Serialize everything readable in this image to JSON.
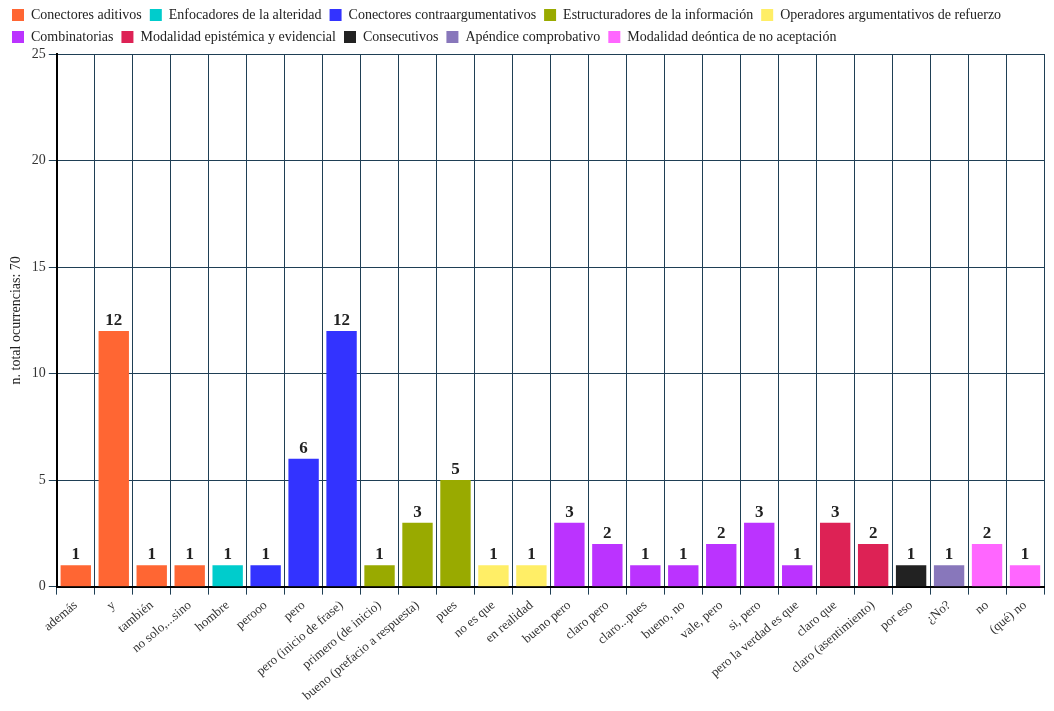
{
  "chart_data": {
    "type": "bar",
    "ylabel": "n. total ocurrencias: 70",
    "categories": [
      "además",
      "y",
      "también",
      "no solo,...sino",
      "hombre",
      "perooo",
      "pero",
      "pero (inicio de frase)",
      "primero (de inicio)",
      "bueno (prefacio a respuesta)",
      "pues",
      "no es que",
      "en realidad",
      "bueno pero",
      "claro pero",
      "claro...pues",
      "bueno, no",
      "vale, pero",
      "si, pero",
      "pero la verdad es que",
      "claro que",
      "claro (asentimiento)",
      "por eso",
      "¿No?",
      "no",
      "(qué) no"
    ],
    "series": [
      {
        "name": "Conectores aditivos",
        "color": "#ff6633",
        "values": [
          1,
          12,
          1,
          1,
          null,
          null,
          null,
          null,
          null,
          null,
          null,
          null,
          null,
          null,
          null,
          null,
          null,
          null,
          null,
          null,
          null,
          null,
          null,
          null,
          null,
          null
        ]
      },
      {
        "name": "Enfocadores de la alteridad",
        "color": "#00cccc",
        "values": [
          null,
          null,
          null,
          null,
          1,
          null,
          null,
          null,
          null,
          null,
          null,
          null,
          null,
          null,
          null,
          null,
          null,
          null,
          null,
          null,
          null,
          null,
          null,
          null,
          null,
          null
        ]
      },
      {
        "name": "Conectores contraargumentativos",
        "color": "#3333ff",
        "values": [
          null,
          null,
          null,
          null,
          null,
          1,
          6,
          12,
          null,
          null,
          null,
          null,
          null,
          null,
          null,
          null,
          null,
          null,
          null,
          null,
          null,
          null,
          null,
          null,
          null,
          null
        ]
      },
      {
        "name": "Estructuradores de la información",
        "color": "#99aa00",
        "values": [
          null,
          null,
          null,
          null,
          null,
          null,
          null,
          null,
          1,
          3,
          5,
          null,
          null,
          null,
          null,
          null,
          null,
          null,
          null,
          null,
          null,
          null,
          null,
          null,
          null,
          null
        ]
      },
      {
        "name": "Operadores argumentativos de refuerzo",
        "color": "#ffee66",
        "values": [
          null,
          null,
          null,
          null,
          null,
          null,
          null,
          null,
          null,
          null,
          null,
          1,
          1,
          null,
          null,
          null,
          null,
          null,
          null,
          null,
          null,
          null,
          null,
          null,
          null,
          null
        ]
      },
      {
        "name": "Combinatorias",
        "color": "#bb33ff",
        "values": [
          null,
          null,
          null,
          null,
          null,
          null,
          null,
          null,
          null,
          null,
          null,
          null,
          null,
          3,
          2,
          1,
          1,
          2,
          3,
          1,
          null,
          null,
          null,
          null,
          null,
          null
        ]
      },
      {
        "name": "Modalidad epistémica y evidencial",
        "color": "#dd2255",
        "values": [
          null,
          null,
          null,
          null,
          null,
          null,
          null,
          null,
          null,
          null,
          null,
          null,
          null,
          null,
          null,
          null,
          null,
          null,
          null,
          null,
          3,
          2,
          null,
          null,
          null,
          null
        ]
      },
      {
        "name": "Consecutivos",
        "color": "#222222",
        "values": [
          null,
          null,
          null,
          null,
          null,
          null,
          null,
          null,
          null,
          null,
          null,
          null,
          null,
          null,
          null,
          null,
          null,
          null,
          null,
          null,
          null,
          null,
          1,
          null,
          null,
          null
        ]
      },
      {
        "name": "Apéndice comprobativo",
        "color": "#8877bb",
        "values": [
          null,
          null,
          null,
          null,
          null,
          null,
          null,
          null,
          null,
          null,
          null,
          null,
          null,
          null,
          null,
          null,
          null,
          null,
          null,
          null,
          null,
          null,
          null,
          1,
          null,
          null
        ]
      },
      {
        "name": "Modalidad deóntica de no aceptación",
        "color": "#ff66ff",
        "values": [
          null,
          null,
          null,
          null,
          null,
          null,
          null,
          null,
          null,
          null,
          null,
          null,
          null,
          null,
          null,
          null,
          null,
          null,
          null,
          null,
          null,
          null,
          null,
          null,
          2,
          1
        ]
      }
    ],
    "ylim": [
      0,
      25
    ],
    "yticks": [
      0,
      5,
      10,
      15,
      20,
      25
    ],
    "grid": true,
    "legend": "top",
    "data_labels": true
  }
}
